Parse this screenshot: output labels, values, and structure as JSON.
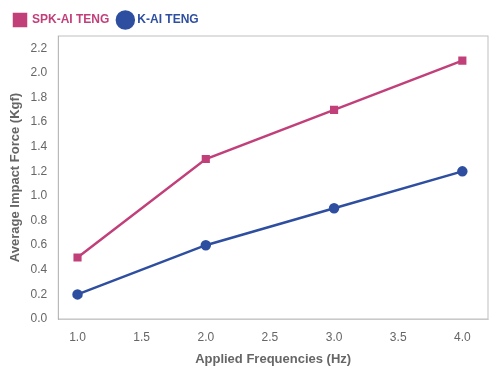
{
  "chart_data": {
    "type": "line",
    "x": [
      1.0,
      2.0,
      3.0,
      4.0
    ],
    "series": [
      {
        "name": "SPK-AI TENG",
        "color": "#C2407A",
        "marker": "square",
        "values": [
          0.5,
          1.3,
          1.7,
          2.1
        ]
      },
      {
        "name": "K-AI TENG",
        "color": "#2E4EA0",
        "marker": "circle",
        "values": [
          0.2,
          0.6,
          0.9,
          1.2
        ]
      }
    ],
    "xlabel": "Applied Frequencies (Hz)",
    "ylabel": "Average Impact Force (Kgf)",
    "xlim": [
      0.85,
      4.2
    ],
    "ylim": [
      0.0,
      2.3
    ],
    "xticks": [
      {
        "value": 1.0,
        "label": "1.0"
      },
      1.5,
      {
        "value": 2.0,
        "label": "2.0"
      },
      2.5,
      {
        "value": 3.0,
        "label": "3.0"
      },
      3.5,
      {
        "value": 4.0,
        "label": "4.0"
      }
    ],
    "yticks": [
      {
        "value": 0.0,
        "label": "0.0"
      },
      0.2,
      0.4,
      0.6,
      0.8,
      {
        "value": 1.0,
        "label": "1.0"
      },
      1.2,
      1.4,
      1.6,
      1.8,
      {
        "value": 2.0,
        "label": "2.0"
      },
      2.2
    ],
    "legend": "upper left",
    "grid": false
  }
}
